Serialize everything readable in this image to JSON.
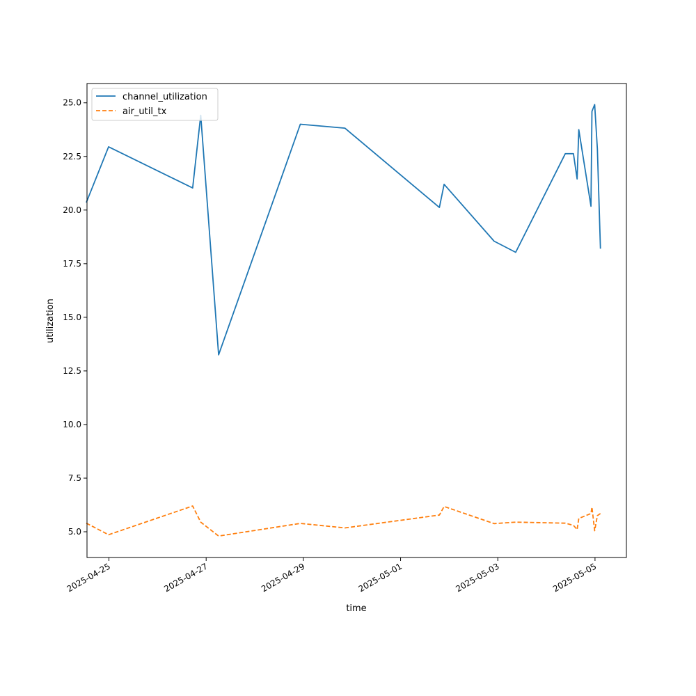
{
  "chart_data": {
    "type": "line",
    "title": "",
    "xlabel": "time",
    "ylabel": "utilization",
    "grid": false,
    "legend_position": "upper-left",
    "xlim": [
      "2025-04-24 13:10",
      "2025-05-05 15:30"
    ],
    "ylim": [
      3.8,
      25.9
    ],
    "x_ticks": [
      "2025-04-25",
      "2025-04-27",
      "2025-04-29",
      "2025-05-01",
      "2025-05-03",
      "2025-05-05"
    ],
    "y_ticks": [
      "5.0",
      "7.5",
      "10.0",
      "12.5",
      "15.0",
      "17.5",
      "20.0",
      "22.5",
      "25.0"
    ],
    "series": [
      {
        "name": "channel_utilization",
        "color": "#1f77b4",
        "style": "solid",
        "points": [
          [
            "2025-04-24 12:50",
            20.35
          ],
          [
            "2025-04-24 23:50",
            22.95
          ],
          [
            "2025-04-26 17:20",
            21.03
          ],
          [
            "2025-04-26 21:20",
            24.42
          ],
          [
            "2025-04-27 06:10",
            13.25
          ],
          [
            "2025-04-28 22:30",
            24.0
          ],
          [
            "2025-04-29 20:30",
            23.82
          ],
          [
            "2025-05-01 19:10",
            20.12
          ],
          [
            "2025-05-01 21:30",
            21.2
          ],
          [
            "2025-05-02 22:10",
            18.55
          ],
          [
            "2025-05-03 08:50",
            18.03
          ],
          [
            "2025-05-04 09:20",
            22.63
          ],
          [
            "2025-05-04 13:20",
            22.63
          ],
          [
            "2025-05-04 15:10",
            21.45
          ],
          [
            "2025-05-04 16:00",
            23.75
          ],
          [
            "2025-05-04 22:00",
            20.18
          ],
          [
            "2025-05-04 22:30",
            24.6
          ],
          [
            "2025-05-04 23:50",
            24.92
          ],
          [
            "2025-05-05 01:10",
            22.85
          ],
          [
            "2025-05-05 02:40",
            18.2
          ]
        ]
      },
      {
        "name": "air_util_tx",
        "color": "#ff7f0e",
        "style": "dashed",
        "points": [
          [
            "2025-04-24 12:50",
            5.4
          ],
          [
            "2025-04-24 23:50",
            4.86
          ],
          [
            "2025-04-26 17:20",
            6.2
          ],
          [
            "2025-04-26 21:20",
            5.45
          ],
          [
            "2025-04-27 06:10",
            4.8
          ],
          [
            "2025-04-28 22:30",
            5.39
          ],
          [
            "2025-04-29 20:30",
            5.18
          ],
          [
            "2025-05-01 19:10",
            5.78
          ],
          [
            "2025-05-01 21:30",
            6.18
          ],
          [
            "2025-05-02 22:10",
            5.38
          ],
          [
            "2025-05-03 08:50",
            5.45
          ],
          [
            "2025-05-04 09:20",
            5.4
          ],
          [
            "2025-05-04 13:20",
            5.3
          ],
          [
            "2025-05-04 15:10",
            5.1
          ],
          [
            "2025-05-04 16:00",
            5.62
          ],
          [
            "2025-05-04 22:00",
            5.85
          ],
          [
            "2025-05-04 22:30",
            6.15
          ],
          [
            "2025-05-04 23:50",
            5.05
          ],
          [
            "2025-05-05 01:10",
            5.75
          ],
          [
            "2025-05-05 02:40",
            5.85
          ]
        ]
      }
    ]
  }
}
